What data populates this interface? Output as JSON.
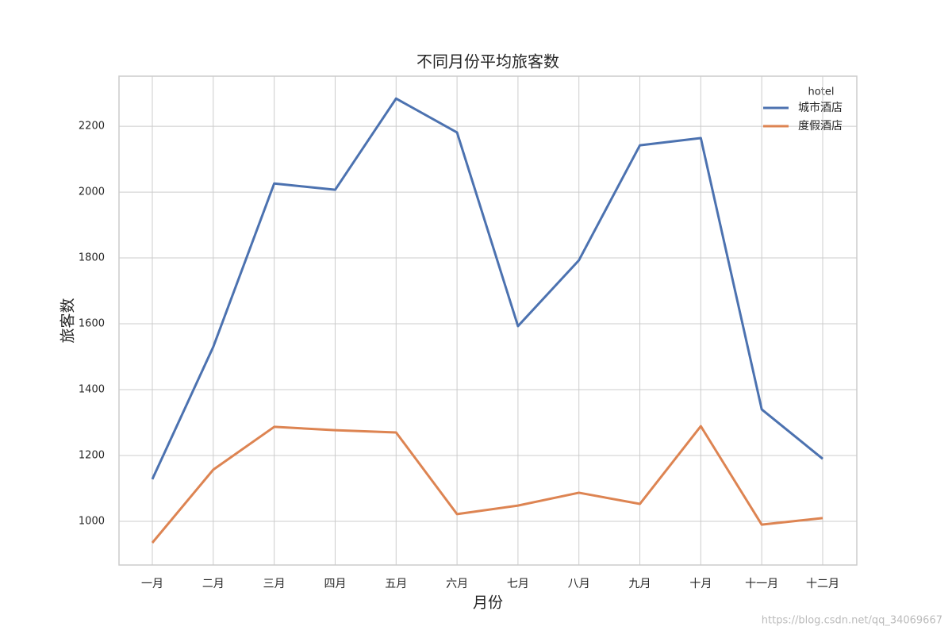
{
  "chart_data": {
    "type": "line",
    "title": "不同月份平均旅客数",
    "xlabel": "月份",
    "ylabel": "旅客数",
    "categories": [
      "一月",
      "二月",
      "三月",
      "四月",
      "五月",
      "六月",
      "七月",
      "八月",
      "九月",
      "十月",
      "十一月",
      "十二月"
    ],
    "series": [
      {
        "name": "城市酒店",
        "color": "#4c72b0",
        "values": [
          1128,
          1530,
          2026,
          2007,
          2284,
          2181,
          1593,
          1793,
          2142,
          2164,
          1340,
          1190
        ]
      },
      {
        "name": "度假酒店",
        "color": "#dd8452",
        "values": [
          935,
          1157,
          1287,
          1277,
          1270,
          1022,
          1048,
          1087,
          1053,
          1289,
          990,
          1010
        ]
      }
    ],
    "legend_title": "hotel",
    "legend_position": "upper right",
    "ylim": [
      867.5,
      2352
    ],
    "yticks": [
      1000,
      1200,
      1400,
      1600,
      1800,
      2000,
      2200
    ],
    "grid": true,
    "watermark": "https://blog.csdn.net/qq_34069667"
  }
}
